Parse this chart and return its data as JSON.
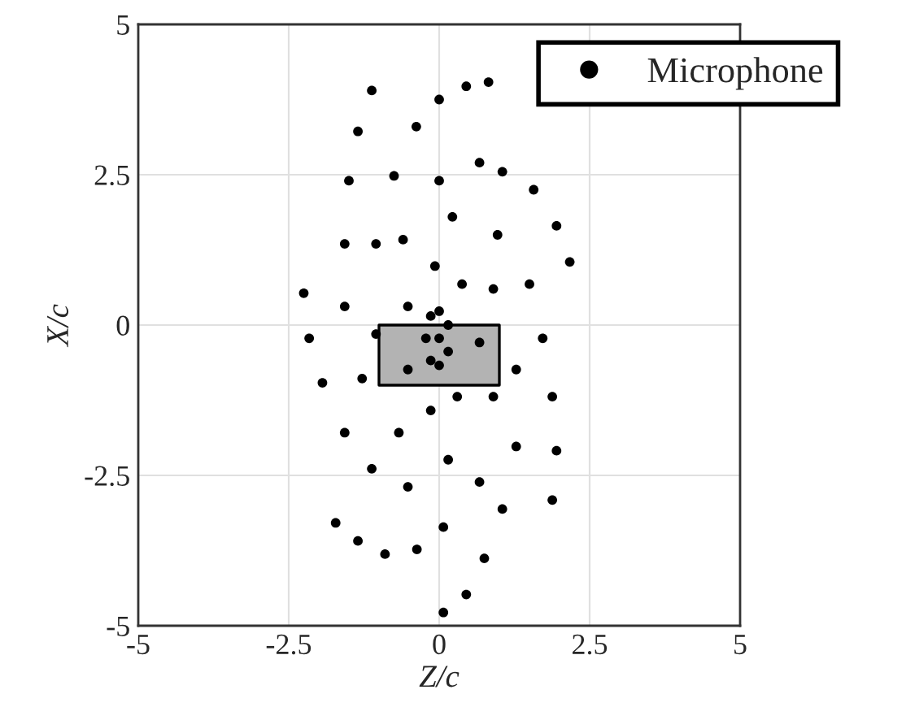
{
  "chart_data": {
    "type": "scatter",
    "xlabel": "Z/c",
    "ylabel": "X/c",
    "xlim": [
      -5,
      5
    ],
    "ylim": [
      -5,
      5
    ],
    "xticks": [
      -5,
      -2.5,
      0,
      2.5,
      5
    ],
    "yticks": [
      -5,
      -2.5,
      0,
      2.5,
      5
    ],
    "grid": true,
    "legend": "top right",
    "marker": "circle",
    "series": [
      {
        "type": "area",
        "color": "#b3b3b3",
        "marker": "none",
        "x": [
          -1,
          1
        ],
        "values": [
          -1,
          -1
        ]
      },
      {
        "name": "Microphone",
        "color": "#000000",
        "x": [
          -1.12,
          0,
          0.45,
          0.82,
          -1.35,
          -0.38,
          0.67,
          1.05,
          -1.5,
          -0.75,
          0,
          1.57,
          0.22,
          1.95,
          -1.57,
          -1.05,
          -0.6,
          0.97,
          2.17,
          -0.07,
          0.38,
          0.9,
          1.5,
          -2.25,
          -1.57,
          -0.52,
          -0.14,
          0,
          0.15,
          -2.16,
          -1.05,
          -0.22,
          0,
          0.67,
          1.72,
          0.15,
          -0.14,
          0,
          -0.52,
          1.28,
          -1.94,
          -1.28,
          0.3,
          0.9,
          1.88,
          -0.14,
          -1.57,
          -0.67,
          1.28,
          1.95,
          0.15,
          -1.12,
          -0.52,
          0.67,
          1.88,
          1.05,
          -1.72,
          0.07,
          -1.35,
          -0.37,
          -0.9,
          0.75,
          0.45,
          0.07
        ],
        "values": [
          3.9,
          3.75,
          3.97,
          4.04,
          3.22,
          3.3,
          2.7,
          2.55,
          2.4,
          2.48,
          2.4,
          2.25,
          1.8,
          1.65,
          1.35,
          1.35,
          1.42,
          1.5,
          1.05,
          0.98,
          0.68,
          0.6,
          0.68,
          0.53,
          0.31,
          0.31,
          0.15,
          0.23,
          0,
          -0.22,
          -0.15,
          -0.22,
          -0.22,
          -0.29,
          -0.22,
          -0.44,
          -0.59,
          -0.67,
          -0.74,
          -0.74,
          -0.96,
          -0.89,
          -1.19,
          -1.19,
          -1.19,
          -1.42,
          -1.79,
          -1.79,
          -2.02,
          -2.09,
          -2.24,
          -2.39,
          -2.69,
          -2.61,
          -2.91,
          -3.06,
          -3.29,
          -3.36,
          -3.59,
          -3.73,
          -3.81,
          -3.88,
          -4.48,
          -4.78
        ]
      }
    ]
  }
}
